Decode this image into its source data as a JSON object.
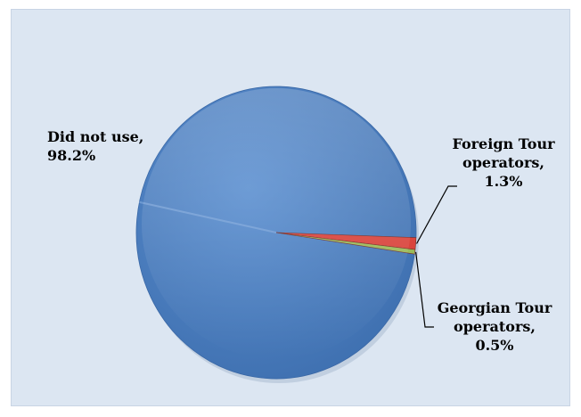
{
  "chart_data": {
    "type": "pie",
    "slices": [
      {
        "label": "Did not use, \n98.2%",
        "value": 98.2,
        "color": "#4a7ebb"
      },
      {
        "label": "Foreign Tour operators, \n1.3%",
        "value": 1.3,
        "color": "#d9443c"
      },
      {
        "label": "Georgian Tour operators, \n0.5%",
        "value": 0.5,
        "color": "#9bbb59"
      }
    ],
    "legend": "none",
    "background_color": "#dce6f2"
  }
}
